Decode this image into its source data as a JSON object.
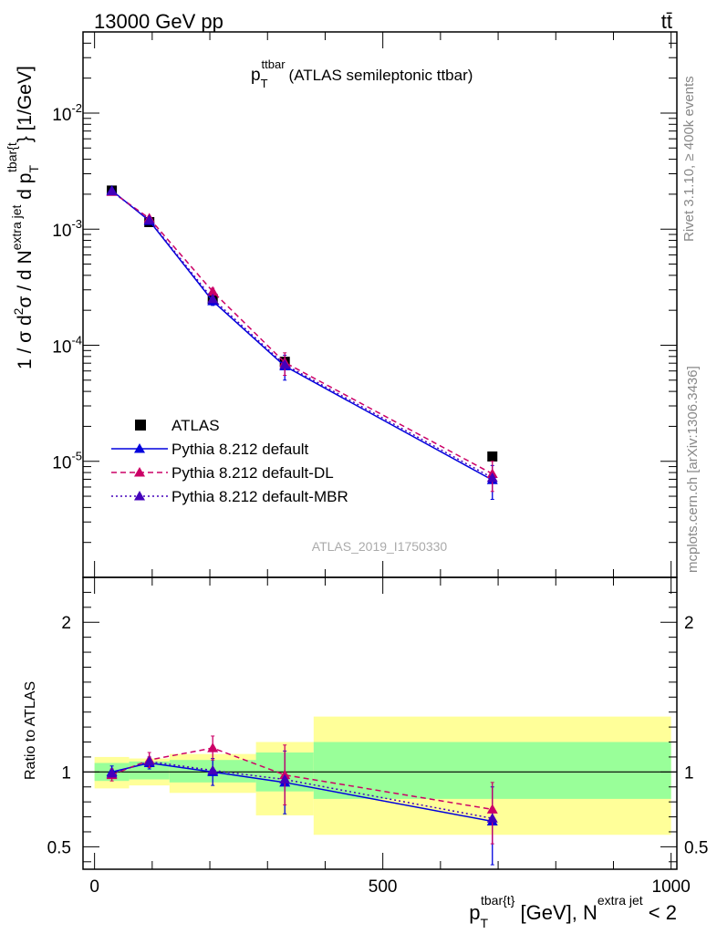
{
  "header": {
    "left_title": "13000 GeV pp",
    "right_title": "tt̄"
  },
  "side_labels": {
    "rivet": "Rivet 3.1.10, ≥ 400k events",
    "mcplots": "mcplots.cern.ch [arXiv:1306.3436]"
  },
  "plot_title": {
    "main": "p",
    "sub": "T",
    "sup": "ttbar",
    "rest": "(ATLAS semileptonic ttbar)"
  },
  "watermark": "ATLAS_2019_I1750330",
  "y_label_main": {
    "p1": "1 / σ d",
    "p2": "2",
    "p3": "σ / d N",
    "p4": "extra jet",
    "p5": " d p",
    "p6": "T",
    "p7": "tbar{t",
    "p8": "} [1/GeV]"
  },
  "y_label_ratio": "Ratio to ATLAS",
  "x_label": {
    "p1": "p",
    "p2": "T",
    "p3": "tbar{t",
    "p4": "}",
    "p5": " [GeV], N",
    "p6": "extra jet",
    "p7": " < 2"
  },
  "colors": {
    "data": "#000000",
    "default": "#0000dd",
    "dl": "#cc0066",
    "mbr": "#4400bb",
    "band_inner": "#99ff99",
    "band_outer": "#ffff99"
  },
  "legend": {
    "items": [
      {
        "label": "ATLAS",
        "style": "square",
        "color": "#000000"
      },
      {
        "label": "Pythia 8.212 default",
        "style": "solid-triangle",
        "color": "#0000dd"
      },
      {
        "label": "Pythia 8.212 default-DL",
        "style": "dashed-triangle",
        "color": "#cc0066"
      },
      {
        "label": "Pythia 8.212 default-MBR",
        "style": "dotted-triangle",
        "color": "#4400bb"
      }
    ]
  },
  "chart_data": [
    {
      "type": "line",
      "panel": "main",
      "x_scale": "linear",
      "y_scale": "log",
      "xlim": [
        -20,
        1010
      ],
      "ylim": [
        1e-06,
        0.05
      ],
      "ytick_labels": [
        "10^-5",
        "10^-4",
        "10^-3",
        "10^-2"
      ],
      "bins": [
        [
          0,
          60
        ],
        [
          60,
          130
        ],
        [
          130,
          280
        ],
        [
          280,
          380
        ],
        [
          380,
          1000
        ]
      ],
      "series": [
        {
          "name": "ATLAS",
          "x": [
            30,
            95,
            205,
            330,
            690
          ],
          "y": [
            0.00215,
            0.00115,
            0.00025,
            7.2e-05,
            1.1e-05
          ]
        },
        {
          "name": "Pythia 8.212 default",
          "x": [
            30,
            95,
            205,
            330,
            690
          ],
          "y": [
            0.00215,
            0.00118,
            0.00024,
            6.6e-05,
            6.9e-06
          ],
          "err_lo": [
            0.00206,
            0.00113,
            0.00022,
            5e-05,
            4.7e-06
          ],
          "err_hi": [
            0.00224,
            0.00123,
            0.00026,
            8.2e-05,
            9.2e-06
          ]
        },
        {
          "name": "Pythia 8.212 default-DL",
          "x": [
            30,
            95,
            205,
            330,
            690
          ],
          "y": [
            0.0021,
            0.00124,
            0.00029,
            7.1e-05,
            7.8e-06
          ],
          "err_lo": [
            0.00202,
            0.00119,
            0.00027,
            5.5e-05,
            5.5e-06
          ],
          "err_hi": [
            0.00218,
            0.00129,
            0.00031,
            8.6e-05,
            1e-05
          ]
        },
        {
          "name": "Pythia 8.212 default-MBR",
          "x": [
            30,
            95,
            205,
            330,
            690
          ],
          "y": [
            0.00212,
            0.0012,
            0.00025,
            6.8e-05,
            7.2e-06
          ]
        }
      ]
    },
    {
      "type": "line",
      "panel": "ratio",
      "ylabel": "Ratio to ATLAS",
      "xlim": [
        -20,
        1010
      ],
      "ylim": [
        0.35,
        2.3
      ],
      "ytick_labels": [
        "0.5",
        "1",
        "2"
      ],
      "xtick_labels": [
        "0",
        "500",
        "1000"
      ],
      "bins": [
        [
          0,
          60
        ],
        [
          60,
          130
        ],
        [
          130,
          280
        ],
        [
          280,
          380
        ],
        [
          380,
          1000
        ]
      ],
      "band_inner": {
        "lo": [
          0.94,
          0.95,
          0.93,
          0.87,
          0.82
        ],
        "hi": [
          1.06,
          1.07,
          1.08,
          1.13,
          1.2
        ]
      },
      "band_outer": {
        "lo": [
          0.89,
          0.91,
          0.86,
          0.71,
          0.58
        ],
        "hi": [
          1.1,
          1.09,
          1.12,
          1.2,
          1.37
        ]
      },
      "series": [
        {
          "name": "Pythia 8.212 default",
          "x": [
            30,
            95,
            205,
            330,
            690
          ],
          "y": [
            1.0,
            1.06,
            1.0,
            0.93,
            0.67
          ],
          "err_lo": [
            0.96,
            1.02,
            0.91,
            0.72,
            0.38
          ],
          "err_hi": [
            1.04,
            1.1,
            1.09,
            1.14,
            0.9
          ]
        },
        {
          "name": "Pythia 8.212 default-DL",
          "x": [
            30,
            95,
            205,
            330,
            690
          ],
          "y": [
            0.98,
            1.08,
            1.16,
            0.98,
            0.75
          ],
          "err_lo": [
            0.94,
            1.03,
            1.08,
            0.78,
            0.52
          ],
          "err_hi": [
            1.02,
            1.13,
            1.24,
            1.18,
            0.93
          ]
        },
        {
          "name": "Pythia 8.212 default-MBR",
          "x": [
            30,
            95,
            205,
            330,
            690
          ],
          "y": [
            0.99,
            1.07,
            1.01,
            0.95,
            0.69
          ]
        }
      ]
    }
  ]
}
